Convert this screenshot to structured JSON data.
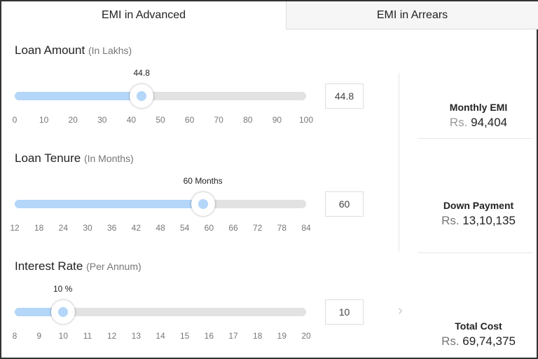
{
  "tabs": [
    {
      "label": "EMI in Advanced",
      "active": true
    },
    {
      "label": "EMI in Arrears",
      "active": false
    }
  ],
  "colors": {
    "accent": "#b3d6f9",
    "track": "#e2e2e2"
  },
  "sliders": [
    {
      "title": "Loan Amount",
      "unit": "(In Lakhs)",
      "value_label": "44.8",
      "input": "44.8",
      "value": 44.8,
      "min": 0,
      "max": 100,
      "ticks": [
        "0",
        "10",
        "20",
        "30",
        "40",
        "50",
        "60",
        "70",
        "80",
        "90",
        "100"
      ]
    },
    {
      "title": "Loan Tenure",
      "unit": "(In Months)",
      "value_label": "60 Months",
      "input": "60",
      "value": 60,
      "min": 12,
      "max": 84,
      "ticks": [
        "12",
        "18",
        "24",
        "30",
        "36",
        "42",
        "48",
        "54",
        "60",
        "66",
        "72",
        "78",
        "84"
      ]
    },
    {
      "title": "Interest Rate",
      "unit": "(Per Annum)",
      "value_label": "10 %",
      "input": "10",
      "value": 10,
      "min": 8,
      "max": 20,
      "ticks": [
        "8",
        "9",
        "10",
        "11",
        "12",
        "13",
        "14",
        "15",
        "16",
        "17",
        "18",
        "19",
        "20"
      ]
    }
  ],
  "results": [
    {
      "label": "Monthly EMI",
      "currency": "Rs.",
      "value": "94,404"
    },
    {
      "label": "Down Payment",
      "currency": "Rs.",
      "value": "13,10,135"
    },
    {
      "label": "Total Cost",
      "currency": "Rs.",
      "value": "69,74,375"
    }
  ],
  "chevron_icon": "chevron-right-icon"
}
